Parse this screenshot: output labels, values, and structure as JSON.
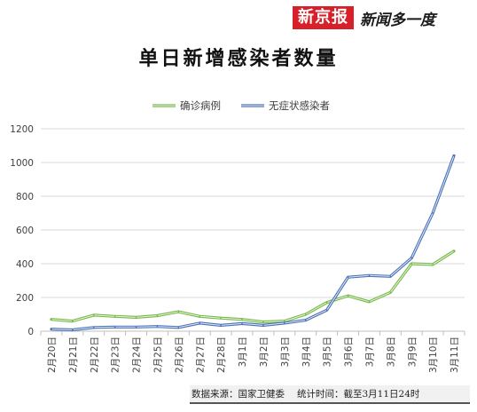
{
  "brand": {
    "logo": "新京报",
    "slogan": "新闻多一度"
  },
  "title": "单日新增感染者数量",
  "footer": {
    "source": "数据来源：国家卫健委",
    "stat_time": "统计时间：截至3月11日24时"
  },
  "colors": {
    "confirmed": "#76b947",
    "asymptomatic": "#4a72b8",
    "grid": "#d9d9d9",
    "axis": "#bfbfbf",
    "text": "#404040"
  },
  "chart_data": {
    "type": "line",
    "title": "单日新增感染者数量",
    "xlabel": "",
    "ylabel": "",
    "ylim": [
      0,
      1200
    ],
    "yticks": [
      "0",
      "200",
      "400",
      "600",
      "800",
      "1000",
      "1200"
    ],
    "grid": true,
    "legend_position": "top",
    "categories": [
      "2月20日",
      "2月21日",
      "2月22日",
      "2月23日",
      "2月24日",
      "2月25日",
      "2月26日",
      "2月27日",
      "2月28日",
      "3月1日",
      "3月2日",
      "3月3日",
      "3月4日",
      "3月5日",
      "3月6日",
      "3月7日",
      "3月8日",
      "3月9日",
      "3月10日",
      "3月11日"
    ],
    "series": [
      {
        "name": "确诊病例",
        "color": "#76b947",
        "values": [
          70,
          60,
          95,
          88,
          82,
          92,
          115,
          88,
          78,
          70,
          55,
          60,
          100,
          170,
          210,
          175,
          230,
          400,
          395,
          475
        ]
      },
      {
        "name": "无症状感染者",
        "color": "#4a72b8",
        "values": [
          12,
          8,
          22,
          25,
          25,
          28,
          22,
          48,
          35,
          45,
          35,
          48,
          65,
          125,
          320,
          330,
          325,
          435,
          700,
          1040
        ]
      }
    ]
  }
}
